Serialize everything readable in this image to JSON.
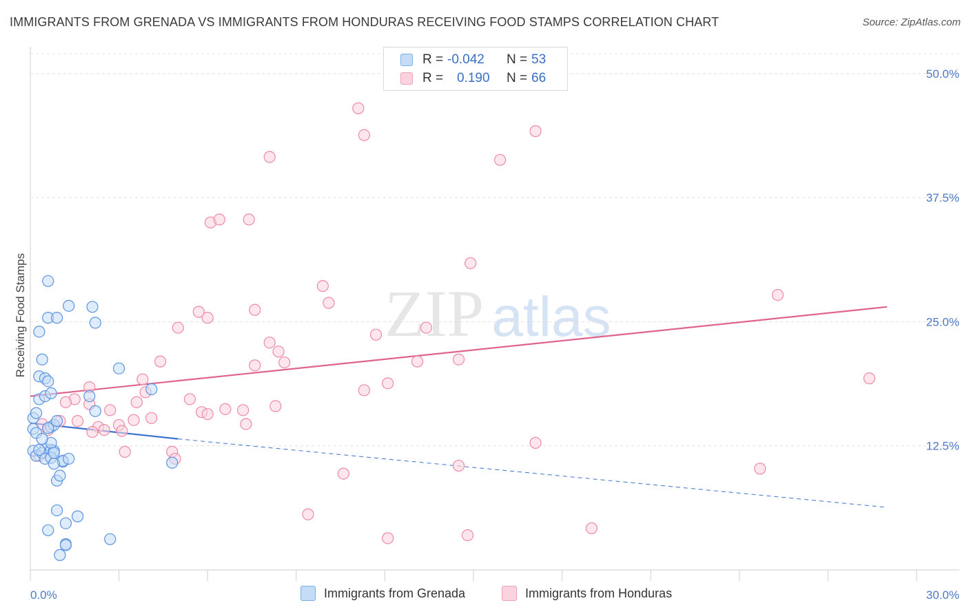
{
  "title": "IMMIGRANTS FROM GRENADA VS IMMIGRANTS FROM HONDURAS RECEIVING FOOD STAMPS CORRELATION CHART",
  "source": "Source: ZipAtlas.com",
  "watermark": {
    "zip": "ZIP",
    "atlas": "atlas"
  },
  "stats": [
    {
      "r_label": "R =",
      "r_value": "-0.042",
      "n_label": "N =",
      "n_value": "53",
      "color": "#7aaee8",
      "fill": "#c5dcf7"
    },
    {
      "r_label": "R =",
      "r_value": "0.190",
      "n_label": "N =",
      "n_value": "66",
      "color": "#f0a0b8",
      "fill": "#fbd3df"
    }
  ],
  "legend": [
    {
      "label": "Immigrants from Grenada",
      "color": "#7aaee8",
      "fill": "#c5dcf7"
    },
    {
      "label": "Immigrants from Honduras",
      "color": "#f0a0b8",
      "fill": "#fbd3df"
    }
  ],
  "chart_data": {
    "type": "scatter",
    "title": "IMMIGRANTS FROM GRENADA VS IMMIGRANTS FROM HONDURAS RECEIVING FOOD STAMPS CORRELATION CHART",
    "xlabel": "",
    "ylabel": "Receiving Food Stamps",
    "xlim": [
      0,
      30
    ],
    "ylim": [
      0,
      52
    ],
    "x_tick_labels": [
      "0.0%",
      "30.0%"
    ],
    "y_ticks": [
      12.5,
      25.0,
      37.5,
      50.0
    ],
    "y_tick_labels": [
      "12.5%",
      "25.0%",
      "37.5%",
      "50.0%"
    ],
    "grid": true,
    "legend_position": "bottom",
    "series": [
      {
        "name": "Immigrants from Grenada",
        "color": "#5b93e0",
        "fill": "#c5dcf7",
        "trend": {
          "x0": 0,
          "y0": 14.8,
          "x1": 5.0,
          "y1": 13.2,
          "dashed_to_x": 29.0,
          "dashed_to_y": 6.3,
          "color": "#3a72d0"
        },
        "points": [
          [
            0.1,
            15.3
          ],
          [
            0.1,
            14.2
          ],
          [
            0.2,
            13.8
          ],
          [
            0.1,
            12.0
          ],
          [
            0.2,
            11.5
          ],
          [
            0.3,
            17.2
          ],
          [
            0.2,
            15.8
          ],
          [
            0.5,
            12.2
          ],
          [
            0.4,
            11.8
          ],
          [
            0.5,
            11.2
          ],
          [
            0.3,
            19.5
          ],
          [
            0.5,
            19.3
          ],
          [
            0.6,
            19.0
          ],
          [
            0.5,
            17.5
          ],
          [
            0.7,
            17.8
          ],
          [
            0.4,
            21.2
          ],
          [
            0.3,
            24.0
          ],
          [
            0.6,
            25.4
          ],
          [
            0.9,
            25.4
          ],
          [
            0.6,
            29.1
          ],
          [
            1.3,
            26.6
          ],
          [
            2.1,
            26.5
          ],
          [
            2.2,
            24.9
          ],
          [
            2.0,
            17.5
          ],
          [
            2.2,
            16.0
          ],
          [
            3.0,
            20.3
          ],
          [
            4.1,
            18.2
          ],
          [
            4.8,
            10.8
          ],
          [
            0.7,
            14.4
          ],
          [
            0.8,
            14.6
          ],
          [
            0.9,
            15.0
          ],
          [
            0.7,
            12.1
          ],
          [
            0.8,
            12.0
          ],
          [
            0.7,
            12.8
          ],
          [
            0.7,
            11.3
          ],
          [
            1.1,
            10.9
          ],
          [
            1.1,
            11.0
          ],
          [
            1.3,
            11.2
          ],
          [
            0.8,
            10.7
          ],
          [
            0.9,
            9.0
          ],
          [
            1.0,
            9.5
          ],
          [
            0.9,
            6.0
          ],
          [
            1.6,
            5.4
          ],
          [
            1.2,
            4.7
          ],
          [
            0.6,
            4.0
          ],
          [
            1.2,
            2.6
          ],
          [
            1.2,
            2.5
          ],
          [
            1.0,
            1.5
          ],
          [
            2.7,
            3.1
          ],
          [
            0.3,
            12.1
          ],
          [
            0.4,
            13.2
          ],
          [
            0.6,
            14.3
          ],
          [
            0.8,
            11.8
          ]
        ]
      },
      {
        "name": "Immigrants from Honduras",
        "color": "#ee89a8",
        "fill": "#fbd3df",
        "trend": {
          "x0": 0,
          "y0": 17.5,
          "x1": 29.0,
          "y1": 26.5,
          "color": "#e0628e"
        },
        "points": [
          [
            11.1,
            46.5
          ],
          [
            11.3,
            43.8
          ],
          [
            17.1,
            44.2
          ],
          [
            8.1,
            41.6
          ],
          [
            15.9,
            41.3
          ],
          [
            6.1,
            35.0
          ],
          [
            6.4,
            35.3
          ],
          [
            7.4,
            35.3
          ],
          [
            14.9,
            30.9
          ],
          [
            9.9,
            28.6
          ],
          [
            10.1,
            26.9
          ],
          [
            25.3,
            27.7
          ],
          [
            7.6,
            26.2
          ],
          [
            5.7,
            26.0
          ],
          [
            6.0,
            25.4
          ],
          [
            5.0,
            24.4
          ],
          [
            13.4,
            24.4
          ],
          [
            11.7,
            23.7
          ],
          [
            8.1,
            22.9
          ],
          [
            8.4,
            22.0
          ],
          [
            4.4,
            21.0
          ],
          [
            7.6,
            20.6
          ],
          [
            8.6,
            20.9
          ],
          [
            13.1,
            21.0
          ],
          [
            14.5,
            21.2
          ],
          [
            3.8,
            19.2
          ],
          [
            12.1,
            18.8
          ],
          [
            11.3,
            18.1
          ],
          [
            2.0,
            18.4
          ],
          [
            3.9,
            17.9
          ],
          [
            2.7,
            16.1
          ],
          [
            3.6,
            16.9
          ],
          [
            1.5,
            17.2
          ],
          [
            2.0,
            16.7
          ],
          [
            1.2,
            16.9
          ],
          [
            5.4,
            17.2
          ],
          [
            5.8,
            15.9
          ],
          [
            6.0,
            15.7
          ],
          [
            6.6,
            16.2
          ],
          [
            7.2,
            16.1
          ],
          [
            8.3,
            16.5
          ],
          [
            3.5,
            15.1
          ],
          [
            4.1,
            15.3
          ],
          [
            1.6,
            15.0
          ],
          [
            2.3,
            14.4
          ],
          [
            2.5,
            14.1
          ],
          [
            3.0,
            14.6
          ],
          [
            3.1,
            14.0
          ],
          [
            2.1,
            13.9
          ],
          [
            7.3,
            14.7
          ],
          [
            0.4,
            14.7
          ],
          [
            1.0,
            15.0
          ],
          [
            0.6,
            14.1
          ],
          [
            3.2,
            11.9
          ],
          [
            4.8,
            11.9
          ],
          [
            4.9,
            11.2
          ],
          [
            17.1,
            12.8
          ],
          [
            10.6,
            9.7
          ],
          [
            14.5,
            10.5
          ],
          [
            24.7,
            10.2
          ],
          [
            28.4,
            19.3
          ],
          [
            9.4,
            5.6
          ],
          [
            12.1,
            3.2
          ],
          [
            14.8,
            3.5
          ],
          [
            19.0,
            4.2
          ],
          [
            0.3,
            11.5
          ]
        ]
      }
    ]
  }
}
